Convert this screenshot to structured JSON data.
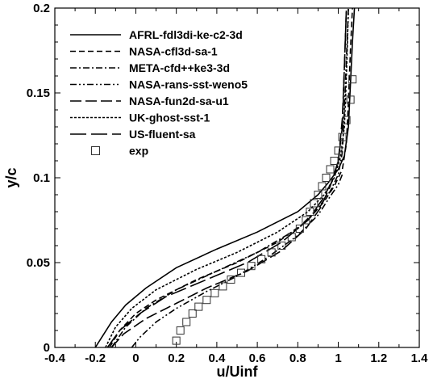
{
  "chart_data": {
    "type": "line",
    "xlabel": "u/Uinf",
    "ylabel": "y/c",
    "xlim": [
      -0.4,
      1.4
    ],
    "ylim": [
      0,
      0.2
    ],
    "xticks": [
      "-0.4",
      "-0.2",
      "0",
      "0.2",
      "0.4",
      "0.6",
      "0.8",
      "1",
      "1.2",
      "1.4"
    ],
    "yticks": [
      "0",
      "0.05",
      "0.1",
      "0.15",
      "0.2"
    ],
    "grid": false,
    "legend_position": "top-left",
    "series": [
      {
        "name": "AFRL-fdl3di-ke-c2-3d",
        "dash": "solid",
        "x": [
          -0.2,
          -0.12,
          -0.05,
          0.05,
          0.2,
          0.4,
          0.6,
          0.8,
          0.9,
          0.95,
          1.0,
          1.03,
          1.05,
          1.06,
          1.07,
          1.08
        ],
        "y": [
          0.0,
          0.015,
          0.025,
          0.035,
          0.047,
          0.058,
          0.068,
          0.08,
          0.09,
          0.097,
          0.105,
          0.113,
          0.13,
          0.155,
          0.18,
          0.2
        ]
      },
      {
        "name": "NASA-cfl3d-sa-1",
        "dash": "dash",
        "x": [
          -0.13,
          -0.08,
          0.0,
          0.1,
          0.3,
          0.5,
          0.7,
          0.85,
          0.93,
          0.98,
          1.02,
          1.04,
          1.05,
          1.06,
          1.07
        ],
        "y": [
          0.0,
          0.01,
          0.02,
          0.028,
          0.04,
          0.05,
          0.062,
          0.075,
          0.086,
          0.095,
          0.105,
          0.12,
          0.145,
          0.175,
          0.2
        ]
      },
      {
        "name": "META-cfd++ke3-3d",
        "dash": "dashdot",
        "x": [
          -0.12,
          -0.05,
          0.05,
          0.2,
          0.4,
          0.6,
          0.8,
          0.9,
          0.96,
          1.0,
          1.02,
          1.03,
          1.04,
          1.05
        ],
        "y": [
          0.0,
          0.012,
          0.023,
          0.034,
          0.045,
          0.056,
          0.07,
          0.082,
          0.092,
          0.102,
          0.115,
          0.14,
          0.17,
          0.2
        ]
      },
      {
        "name": "NASA-rans-sst-weno5",
        "dash": "dashdotdot",
        "x": [
          -0.02,
          0.02,
          0.1,
          0.2,
          0.35,
          0.5,
          0.65,
          0.8,
          0.9,
          0.96,
          1.0,
          1.02
        ],
        "y": [
          0.0,
          0.006,
          0.015,
          0.023,
          0.033,
          0.042,
          0.053,
          0.066,
          0.078,
          0.089,
          0.096,
          0.102
        ]
      },
      {
        "name": "NASA-fun2d-sa-u1",
        "dash": "longdash",
        "x": [
          -0.12,
          -0.06,
          0.05,
          0.2,
          0.35,
          0.55,
          0.72,
          0.84,
          0.91,
          0.96,
          1.0,
          1.02,
          1.03,
          1.04
        ],
        "y": [
          0.0,
          0.008,
          0.017,
          0.026,
          0.035,
          0.045,
          0.057,
          0.07,
          0.082,
          0.095,
          0.11,
          0.135,
          0.165,
          0.2
        ]
      },
      {
        "name": "UK-ghost-sst-1",
        "dash": "shortdash",
        "x": [
          -0.15,
          -0.1,
          -0.02,
          0.1,
          0.3,
          0.5,
          0.7,
          0.85,
          0.93,
          0.98,
          1.01,
          1.03,
          1.04,
          1.05
        ],
        "y": [
          0.0,
          0.012,
          0.023,
          0.034,
          0.046,
          0.056,
          0.068,
          0.08,
          0.09,
          0.1,
          0.112,
          0.13,
          0.16,
          0.2
        ]
      },
      {
        "name": "US-fluent-sa",
        "dash": "verylongdash",
        "x": [
          -0.14,
          -0.08,
          0.02,
          0.15,
          0.35,
          0.55,
          0.72,
          0.85,
          0.92,
          0.97,
          1.0,
          1.02,
          1.03,
          1.04
        ],
        "y": [
          0.0,
          0.01,
          0.02,
          0.03,
          0.04,
          0.05,
          0.062,
          0.075,
          0.087,
          0.098,
          0.11,
          0.13,
          0.165,
          0.2
        ]
      },
      {
        "name": "exp",
        "marker": "square",
        "x": [
          0.2,
          0.22,
          0.25,
          0.28,
          0.31,
          0.35,
          0.39,
          0.43,
          0.47,
          0.52,
          0.57,
          0.62,
          0.67,
          0.72,
          0.77,
          0.81,
          0.84,
          0.86,
          0.88,
          0.9,
          0.92,
          0.94,
          0.96,
          0.98,
          1.0,
          1.02,
          1.04,
          1.06,
          1.07
        ],
        "y": [
          0.004,
          0.01,
          0.015,
          0.02,
          0.024,
          0.028,
          0.032,
          0.036,
          0.04,
          0.044,
          0.048,
          0.052,
          0.056,
          0.06,
          0.065,
          0.07,
          0.075,
          0.08,
          0.085,
          0.09,
          0.095,
          0.1,
          0.105,
          0.11,
          0.116,
          0.124,
          0.134,
          0.146,
          0.158
        ]
      }
    ]
  }
}
